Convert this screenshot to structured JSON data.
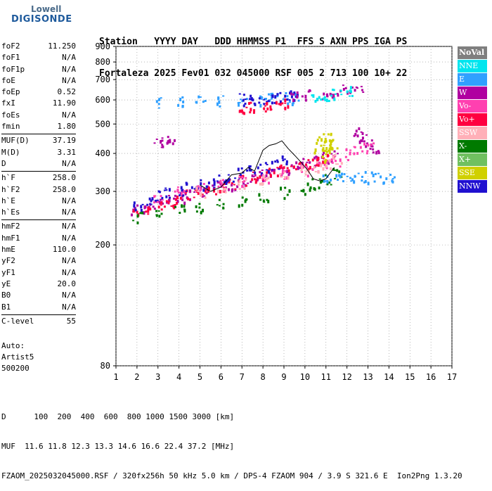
{
  "logo": {
    "line1": "Lowell",
    "line2": "DIGISONDE"
  },
  "header": {
    "row1": "Station   YYYY DAY   DDD HHMMSS P1  FFS S AXN PPS IGA PS",
    "row2": "Fortaleza 2025 Fev01 032 045000 RSF 005 2 713 100 10+ 22"
  },
  "params": [
    [
      {
        "label": "foF2",
        "value": "11.250"
      },
      {
        "label": "foF1",
        "value": "N/A"
      },
      {
        "label": "foF1p",
        "value": "N/A"
      },
      {
        "label": "foE",
        "value": "N/A"
      },
      {
        "label": "foEp",
        "value": "0.52"
      },
      {
        "label": "fxI",
        "value": "11.90"
      },
      {
        "label": "foEs",
        "value": "N/A"
      },
      {
        "label": "fmin",
        "value": "1.80"
      }
    ],
    [
      {
        "label": "MUF(D)",
        "value": "37.19"
      },
      {
        "label": "M(D)",
        "value": "3.31"
      },
      {
        "label": "D",
        "value": "N/A"
      }
    ],
    [
      {
        "label": "h`F",
        "value": "258.0"
      },
      {
        "label": "h`F2",
        "value": "258.0"
      },
      {
        "label": "h`E",
        "value": "N/A"
      },
      {
        "label": "h`Es",
        "value": "N/A"
      }
    ],
    [
      {
        "label": "hmF2",
        "value": "N/A"
      },
      {
        "label": "hmF1",
        "value": "N/A"
      },
      {
        "label": "hmE",
        "value": "110.0"
      },
      {
        "label": "yF2",
        "value": "N/A"
      },
      {
        "label": "yF1",
        "value": "N/A"
      },
      {
        "label": "yE",
        "value": "20.0"
      },
      {
        "label": "B0",
        "value": "N/A"
      },
      {
        "label": "B1",
        "value": "N/A"
      }
    ],
    [
      {
        "label": "C-level",
        "value": "55"
      }
    ]
  ],
  "auto": {
    "line1": "Auto:",
    "line2": "Artist5",
    "line3": "500200"
  },
  "legend": [
    {
      "label": "NoVal",
      "color": "#7f7f7f"
    },
    {
      "label": "NNE",
      "color": "#00e5ee"
    },
    {
      "label": "E",
      "color": "#30a0ff"
    },
    {
      "label": "W",
      "color": "#b000a0"
    },
    {
      "label": "Vo-",
      "color": "#ff40b0"
    },
    {
      "label": "Vo+",
      "color": "#ff0040"
    },
    {
      "label": "SSW",
      "color": "#ffb0b8"
    },
    {
      "label": "X-",
      "color": "#007a00"
    },
    {
      "label": "X+",
      "color": "#70c060"
    },
    {
      "label": "SSE",
      "color": "#d0d000"
    },
    {
      "label": "NNW",
      "color": "#2010d0"
    }
  ],
  "footer": {
    "row1": "D      100  200  400  600  800 1000 1500 3000 [km]",
    "row2": "MUF  11.6 11.8 12.3 13.3 14.6 16.6 22.4 37.2 [MHz]",
    "row3": "FZAOM_2025032045000.RSF / 320fx256h 50 kHz 5.0 km / DPS-4 FZAOM 904 / 3.9 S 321.6 E  Ion2Png 1.3.20"
  },
  "chart_data": {
    "type": "scatter",
    "xlim": [
      1,
      17
    ],
    "ylim": [
      80,
      900
    ],
    "y_scale": "log",
    "x_ticks": [
      1,
      2,
      3,
      4,
      5,
      6,
      7,
      8,
      9,
      10,
      11,
      12,
      13,
      14,
      15,
      16,
      17
    ],
    "y_ticks": [
      80,
      200,
      300,
      400,
      500,
      600,
      700,
      800,
      900
    ],
    "grid": "dotted",
    "legend_position": "right",
    "traces": [
      {
        "name": "F2 trace lower",
        "color": "#b000a0",
        "x": [
          1.9,
          2.5,
          3,
          3.5,
          4,
          4.5,
          5,
          5.5,
          6,
          6.5,
          7,
          7.5,
          8,
          8.5,
          9,
          9.5,
          10,
          10.5,
          11,
          11.3
        ],
        "y": [
          262,
          268,
          275,
          282,
          288,
          294,
          300,
          305,
          312,
          318,
          325,
          332,
          340,
          348,
          356,
          365,
          372,
          382,
          392,
          405
        ]
      },
      {
        "name": "F2 trace mid",
        "color": "#ff0040",
        "x": [
          2,
          2.5,
          3,
          3.5,
          4,
          4.5,
          5,
          5.5,
          6,
          6.5,
          7,
          7.5,
          8,
          8.5,
          9,
          9.5,
          10,
          10.5,
          11
        ],
        "y": [
          255,
          262,
          268,
          276,
          284,
          292,
          300,
          306,
          312,
          320,
          328,
          336,
          343,
          350,
          356,
          362,
          368,
          378,
          388
        ]
      },
      {
        "name": "F2 trace X",
        "color": "#007a00",
        "x": [
          2,
          3,
          4,
          5,
          6,
          7,
          8,
          9,
          10,
          10.5,
          11,
          11.5
        ],
        "y": [
          248,
          255,
          262,
          268,
          275,
          282,
          290,
          298,
          308,
          318,
          330,
          345
        ]
      },
      {
        "name": "O-trace blue",
        "color": "#2010d0",
        "x": [
          2,
          2.5,
          3,
          3.5,
          4,
          4.5,
          5,
          5.5,
          6,
          6.5,
          7,
          7.5,
          8,
          8.5,
          9
        ],
        "y": [
          272,
          280,
          290,
          300,
          305,
          312,
          318,
          322,
          330,
          336,
          345,
          352,
          360,
          368,
          378
        ]
      },
      {
        "name": "pink spread",
        "color": "#ff40b0",
        "x": [
          3,
          4,
          5,
          6,
          7,
          8,
          9,
          10,
          10.5,
          11,
          11.5
        ],
        "y": [
          290,
          300,
          310,
          318,
          326,
          335,
          345,
          355,
          362,
          370,
          380
        ]
      },
      {
        "name": "SSW spread",
        "color": "#ffb0b8",
        "x": [
          5,
          6,
          7,
          8,
          9,
          10,
          10.5,
          11,
          11.5
        ],
        "y": [
          300,
          310,
          318,
          328,
          340,
          352,
          362,
          372,
          385
        ]
      },
      {
        "name": "SSE patch",
        "color": "#d0d000",
        "x": [
          10.6,
          10.8,
          11,
          11.2,
          11.4,
          10.9,
          11.1
        ],
        "y": [
          420,
          440,
          450,
          435,
          425,
          405,
          395
        ]
      },
      {
        "name": "E patch",
        "color": "#30a0ff",
        "x": [
          3,
          4,
          5,
          6,
          7,
          8,
          8.5,
          9,
          9.5
        ],
        "y": [
          590,
          592,
          595,
          598,
          602,
          605,
          608,
          610,
          612
        ]
      },
      {
        "name": "E high",
        "color": "#30a0ff",
        "x": [
          11,
          11.5,
          12,
          12.5,
          13,
          13.5,
          14
        ],
        "y": [
          335,
          338,
          340,
          338,
          336,
          334,
          332
        ]
      },
      {
        "name": "NNW upper",
        "color": "#2010d0",
        "x": [
          7,
          7.5,
          8,
          8.5,
          9,
          9.5
        ],
        "y": [
          605,
          608,
          612,
          616,
          620,
          625
        ]
      },
      {
        "name": "W upper",
        "color": "#b000a0",
        "x": [
          9.5,
          10,
          11,
          11.5,
          12,
          12.5
        ],
        "y": [
          625,
          628,
          632,
          640,
          650,
          665
        ]
      },
      {
        "name": "NNE upper",
        "color": "#00e5ee",
        "x": [
          10.5,
          11,
          11.5,
          12
        ],
        "y": [
          615,
          625,
          635,
          645
        ]
      },
      {
        "name": "red mid",
        "color": "#ff0040",
        "x": [
          7,
          7.5,
          8,
          8.5,
          9
        ],
        "y": [
          560,
          568,
          575,
          580,
          585
        ]
      },
      {
        "name": "W mid",
        "color": "#b000a0",
        "x": [
          3,
          3.3,
          3.6
        ],
        "y": [
          435,
          437,
          438
        ]
      },
      {
        "name": "W right",
        "color": "#b000a0",
        "x": [
          12.5,
          12.8,
          13,
          13.3
        ],
        "y": [
          470,
          455,
          440,
          420
        ]
      },
      {
        "name": "Vo- right",
        "color": "#ff40b0",
        "x": [
          12,
          12.5,
          13
        ],
        "y": [
          400,
          410,
          420
        ]
      }
    ],
    "profile_line": {
      "color": "#000000",
      "x": [
        5,
        5.5,
        6,
        6.5,
        7,
        7.3,
        7.6,
        8,
        8.3,
        8.6,
        8.9,
        9.2,
        9.5,
        9.8,
        10.1,
        10.4,
        10.7,
        11,
        11.2,
        11.4
      ],
      "y": [
        315,
        300,
        310,
        340,
        345,
        360,
        350,
        410,
        425,
        430,
        440,
        415,
        395,
        375,
        355,
        330,
        325,
        330,
        345,
        360
      ]
    }
  }
}
